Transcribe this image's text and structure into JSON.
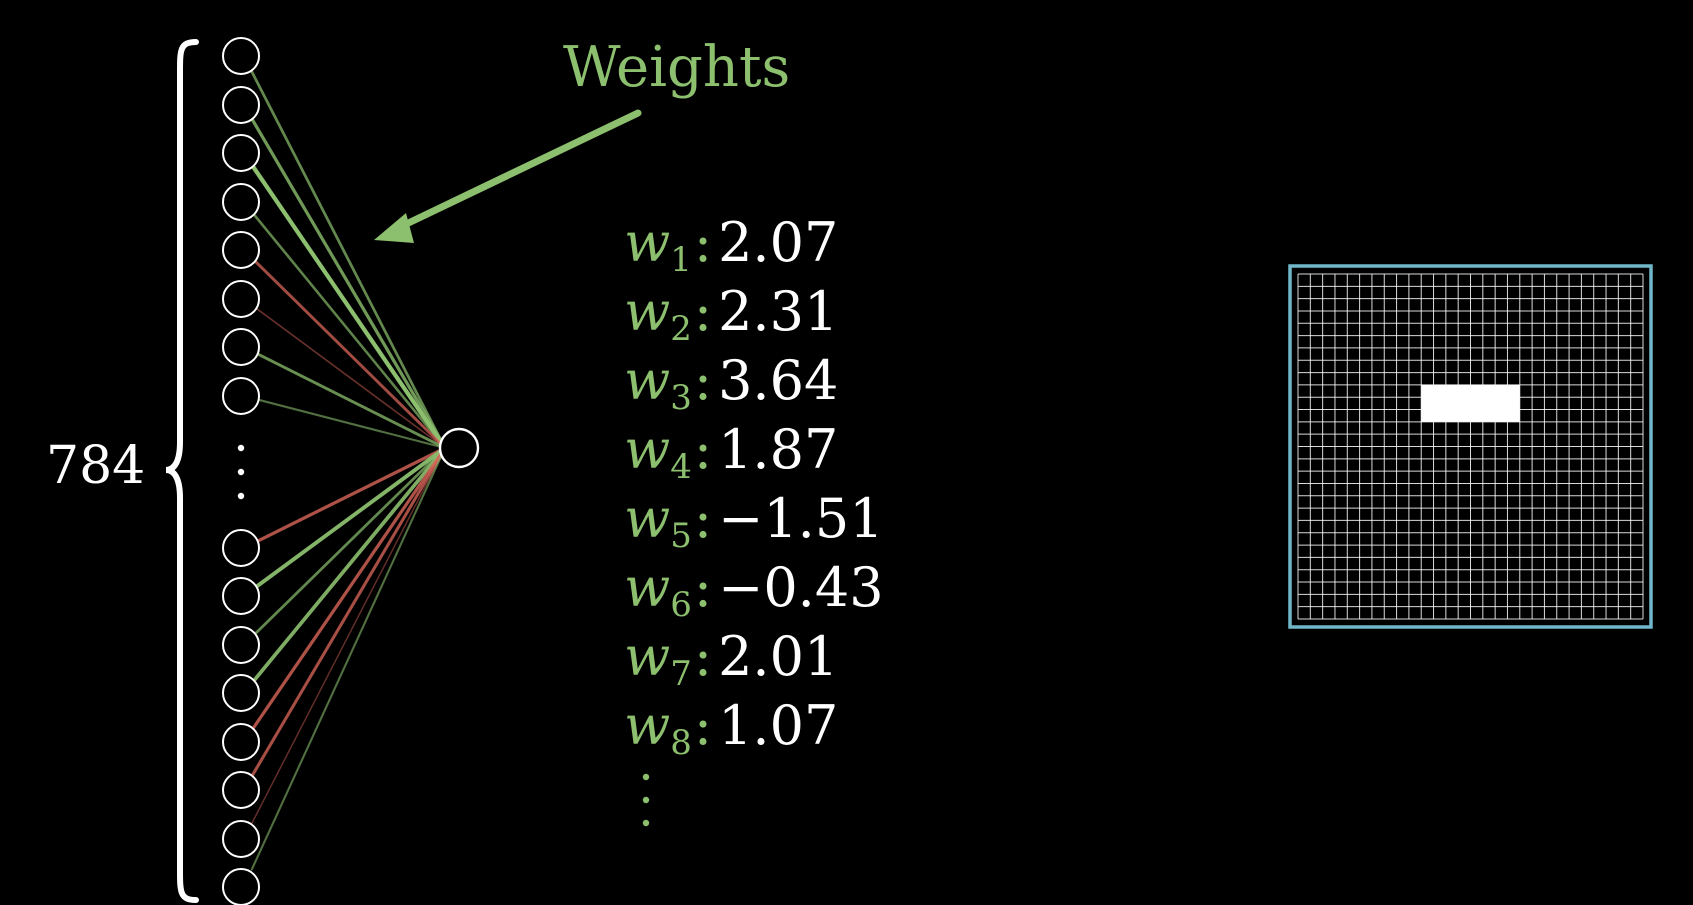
{
  "colors": {
    "background": "#000000",
    "neuron": "#ffffff",
    "positive": "#8cbf6e",
    "negative": "#d9665a",
    "grid_border": "#6fb7c9",
    "grid_line": "#ffffff",
    "label": "#ffffff"
  },
  "layer": {
    "count_label": "784",
    "visible_neurons": 16,
    "ellipsis": "⋮"
  },
  "annotation": {
    "title": "Weights"
  },
  "output_neuron": {
    "label": "output neuron"
  },
  "connections": [
    {
      "from": 0,
      "sign": "positive",
      "strength": 0.55
    },
    {
      "from": 1,
      "sign": "positive",
      "strength": 0.7
    },
    {
      "from": 2,
      "sign": "positive",
      "strength": 1.0
    },
    {
      "from": 3,
      "sign": "positive",
      "strength": 0.5
    },
    {
      "from": 4,
      "sign": "negative",
      "strength": 0.6
    },
    {
      "from": 5,
      "sign": "negative",
      "strength": 0.2
    },
    {
      "from": 6,
      "sign": "positive",
      "strength": 0.6
    },
    {
      "from": 7,
      "sign": "positive",
      "strength": 0.35
    },
    {
      "from": 8,
      "sign": "negative",
      "strength": 0.7
    },
    {
      "from": 9,
      "sign": "positive",
      "strength": 0.9
    },
    {
      "from": 10,
      "sign": "positive",
      "strength": 0.55
    },
    {
      "from": 11,
      "sign": "positive",
      "strength": 0.85
    },
    {
      "from": 12,
      "sign": "negative",
      "strength": 0.7
    },
    {
      "from": 13,
      "sign": "negative",
      "strength": 0.65
    },
    {
      "from": 14,
      "sign": "negative",
      "strength": 0.15
    },
    {
      "from": 15,
      "sign": "positive",
      "strength": 0.35
    }
  ],
  "weights": [
    {
      "symbol": "w",
      "index": "1",
      "value": "2.07"
    },
    {
      "symbol": "w",
      "index": "2",
      "value": "2.31"
    },
    {
      "symbol": "w",
      "index": "3",
      "value": "3.64"
    },
    {
      "symbol": "w",
      "index": "4",
      "value": "1.87"
    },
    {
      "symbol": "w",
      "index": "5",
      "value": "−1.51"
    },
    {
      "symbol": "w",
      "index": "6",
      "value": "−0.43"
    },
    {
      "symbol": "w",
      "index": "7",
      "value": "2.01"
    },
    {
      "symbol": "w",
      "index": "8",
      "value": "1.07"
    }
  ],
  "weights_ellipsis": "⋮",
  "pixel_grid": {
    "rows": 28,
    "cols": 28,
    "highlight": {
      "row_start": 9,
      "row_end": 12,
      "col_start": 10,
      "col_end": 18
    }
  }
}
